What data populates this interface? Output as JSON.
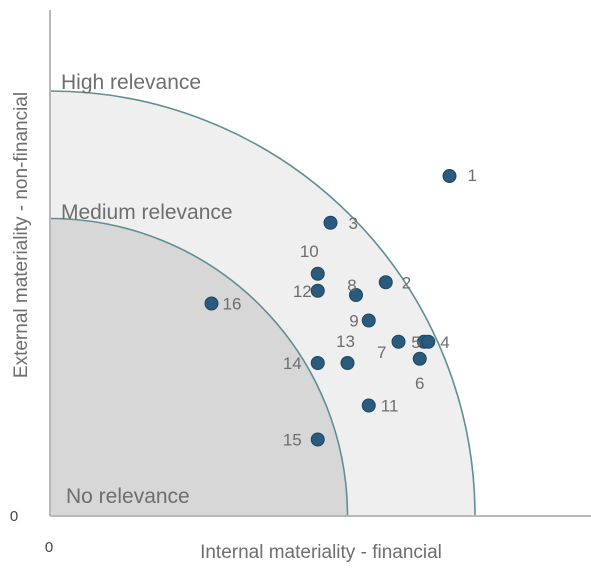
{
  "chart_data": {
    "type": "scatter",
    "xlabel": "Internal materiality - financial",
    "ylabel": "External materiality - non-financial",
    "x_origin_label": "0",
    "y_origin_label": "0",
    "xlim": [
      0,
      100
    ],
    "ylim": [
      0,
      100
    ],
    "grid": false,
    "zones": [
      {
        "name": "High relevance",
        "radius": 100,
        "color": "#efefef"
      },
      {
        "name": "Medium relevance",
        "radius": 70,
        "color": "#d7d7d7"
      },
      {
        "name": "No relevance",
        "color": "#d7d7d7"
      }
    ],
    "points": [
      {
        "label": "1",
        "x": 94,
        "y": 80
      },
      {
        "label": "3",
        "x": 66,
        "y": 69
      },
      {
        "label": "10",
        "x": 63,
        "y": 57
      },
      {
        "label": "8",
        "x": 72,
        "y": 52
      },
      {
        "label": "2",
        "x": 79,
        "y": 55
      },
      {
        "label": "12",
        "x": 63,
        "y": 53
      },
      {
        "label": "16",
        "x": 38,
        "y": 50
      },
      {
        "label": "9",
        "x": 75,
        "y": 46
      },
      {
        "label": "5",
        "x": 88,
        "y": 41
      },
      {
        "label": "4",
        "x": 89,
        "y": 41
      },
      {
        "label": "7",
        "x": 82,
        "y": 41
      },
      {
        "label": "6",
        "x": 87,
        "y": 37
      },
      {
        "label": "13",
        "x": 70,
        "y": 36
      },
      {
        "label": "14",
        "x": 63,
        "y": 36
      },
      {
        "label": "11",
        "x": 75,
        "y": 26
      },
      {
        "label": "15",
        "x": 63,
        "y": 18
      }
    ],
    "point_color": "#2a5b7c",
    "axis_color": "#b8b8b8",
    "arc_color": "#5f8f93"
  }
}
